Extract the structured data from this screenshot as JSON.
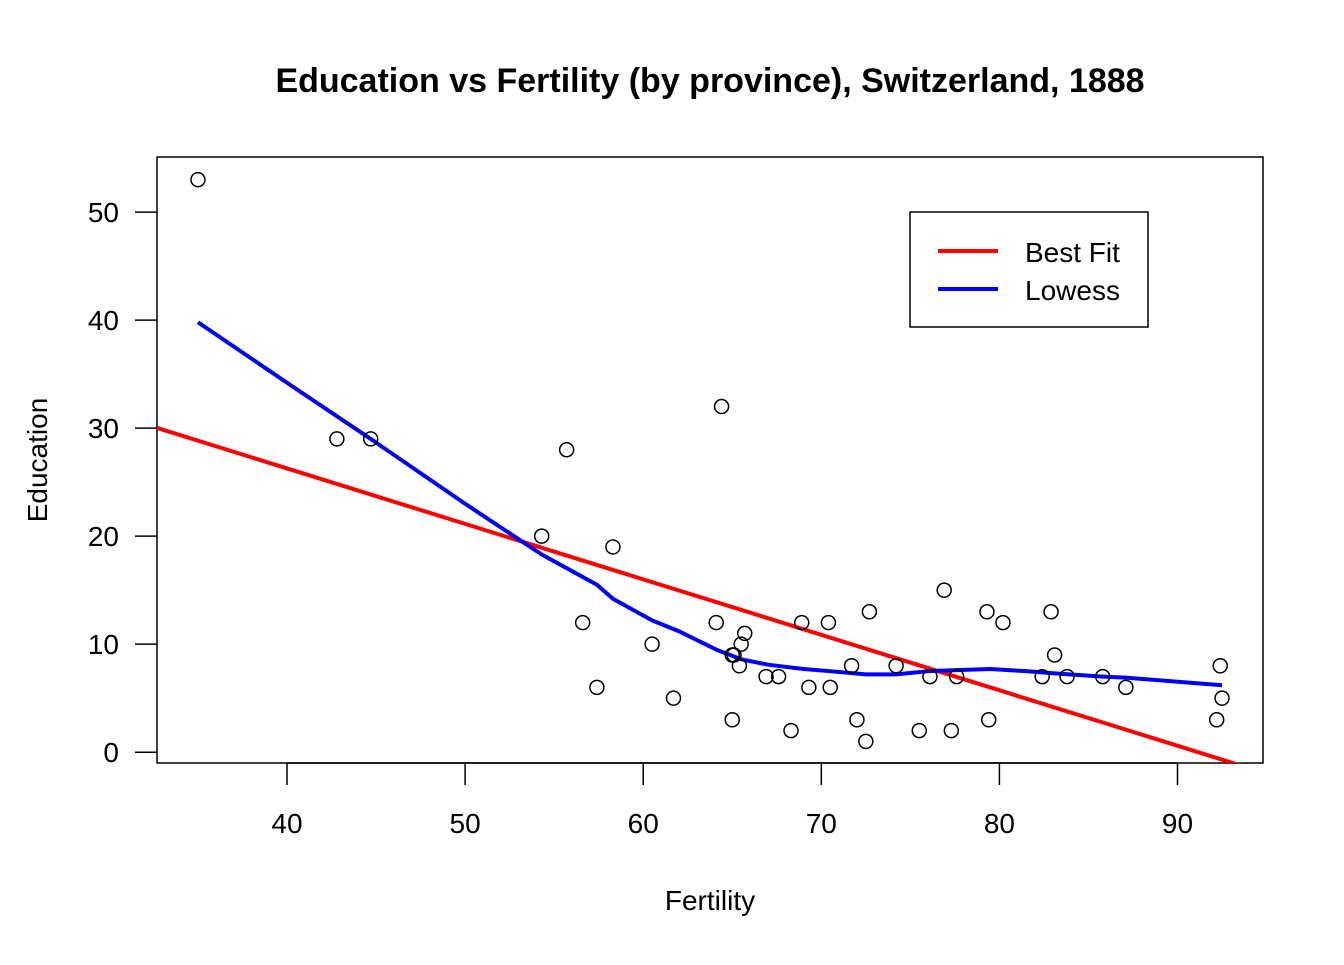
{
  "chart_data": {
    "type": "scatter",
    "title": "Education vs Fertility (by province), Switzerland, 1888",
    "xlabel": "Fertility",
    "ylabel": "Education",
    "xlim": [
      32.7,
      94.8
    ],
    "ylim": [
      -1.0,
      55.1
    ],
    "xticks": [
      40,
      50,
      60,
      70,
      80,
      90
    ],
    "yticks": [
      0,
      10,
      20,
      30,
      40,
      50
    ],
    "grid": false,
    "legend_position": "top-right",
    "points": {
      "x": [
        80.2,
        83.1,
        92.5,
        85.8,
        76.9,
        76.1,
        83.8,
        92.4,
        82.4,
        82.9,
        87.1,
        64.1,
        66.9,
        68.9,
        61.7,
        68.3,
        71.7,
        55.7,
        54.3,
        65.1,
        65.5,
        65.0,
        56.6,
        57.4,
        72.5,
        74.2,
        72.0,
        60.5,
        58.3,
        65.4,
        75.5,
        69.3,
        77.3,
        70.5,
        79.4,
        65.0,
        92.2,
        79.3,
        70.4,
        65.7,
        72.7,
        64.4,
        77.6,
        67.6,
        35.0,
        44.7,
        42.8
      ],
      "y": [
        12,
        9,
        5,
        7,
        15,
        7,
        7,
        8,
        7,
        13,
        6,
        12,
        7,
        12,
        5,
        2,
        8,
        28,
        20,
        9,
        10,
        3,
        12,
        6,
        1,
        8,
        3,
        10,
        19,
        8,
        2,
        6,
        2,
        6,
        3,
        9,
        3,
        13,
        12,
        11,
        13,
        32,
        7,
        7,
        53,
        29,
        29
      ]
    },
    "series": [
      {
        "name": "Best Fit",
        "color": "#ff0000",
        "intercept": 46.818,
        "slope": -0.5136
      },
      {
        "name": "Lowess",
        "color": "#0000ff",
        "x": [
          35.0,
          40.0,
          44.7,
          50.0,
          54.3,
          57.4,
          58.3,
          60.5,
          62.0,
          64.1,
          65.5,
          67.0,
          69.0,
          70.5,
          72.5,
          74.2,
          76.0,
          77.6,
          79.5,
          81.5,
          83.1,
          85.8,
          87.1,
          92.5
        ],
        "y": [
          39.8,
          34.2,
          29.0,
          23.0,
          18.3,
          15.5,
          14.2,
          12.2,
          11.2,
          9.5,
          8.6,
          8.1,
          7.7,
          7.5,
          7.2,
          7.2,
          7.5,
          7.6,
          7.7,
          7.5,
          7.3,
          7.0,
          6.9,
          6.2
        ]
      }
    ]
  }
}
